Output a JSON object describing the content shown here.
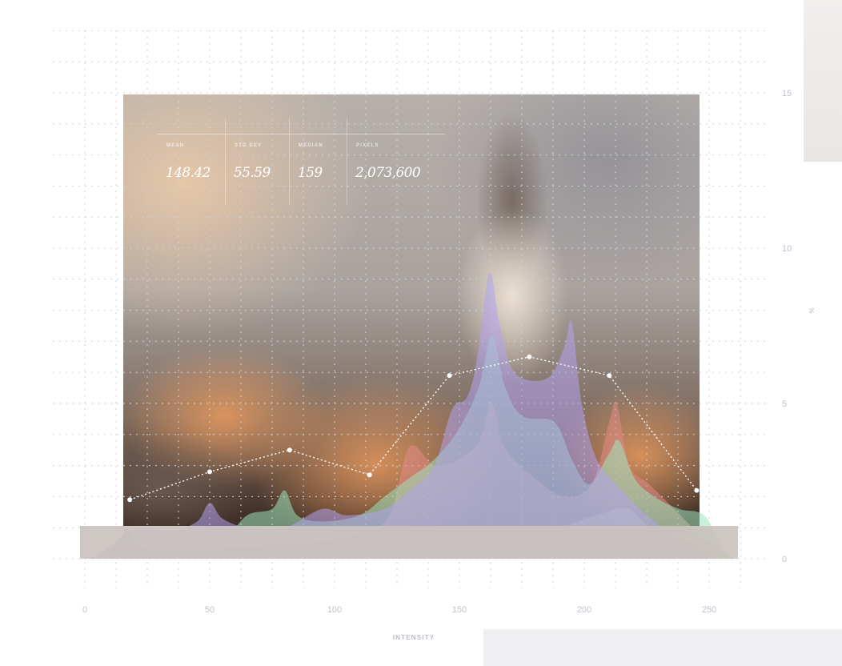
{
  "chart_data": {
    "type": "area",
    "xlabel": "INTENSITY",
    "ylabel": "%",
    "xlim": [
      0,
      260
    ],
    "ylim": [
      0,
      15
    ],
    "x_ticks": [
      "0",
      "50",
      "100",
      "150",
      "200",
      "250"
    ],
    "y_ticks": [
      "0",
      "5",
      "10",
      "15"
    ],
    "grid": true,
    "stats": [
      {
        "label": "MEAN",
        "value": "148.42"
      },
      {
        "label": "STD DEV",
        "value": "55.59"
      },
      {
        "label": "MEDIAN",
        "value": "159"
      },
      {
        "label": "PIXELS",
        "value": "2,073,600"
      }
    ],
    "series": [
      {
        "color": "#b3a2ee",
        "points": [
          [
            2,
            0
          ],
          [
            10,
            0.4
          ],
          [
            18,
            0.9
          ],
          [
            25,
            1.0
          ],
          [
            35,
            0.9
          ],
          [
            45,
            1.2
          ],
          [
            50,
            1.8
          ],
          [
            55,
            1.3
          ],
          [
            65,
            1.0
          ],
          [
            80,
            1.0
          ],
          [
            95,
            1.6
          ],
          [
            105,
            1.4
          ],
          [
            120,
            1.6
          ],
          [
            130,
            2.2
          ],
          [
            140,
            3.0
          ],
          [
            147,
            4.8
          ],
          [
            153,
            5.2
          ],
          [
            157,
            6.4
          ],
          [
            162,
            9.2
          ],
          [
            166,
            7.6
          ],
          [
            172,
            6.0
          ],
          [
            185,
            5.8
          ],
          [
            192,
            6.8
          ],
          [
            195,
            7.6
          ],
          [
            199,
            5.0
          ],
          [
            205,
            3.2
          ],
          [
            215,
            2.2
          ],
          [
            225,
            1.4
          ],
          [
            235,
            0.8
          ],
          [
            245,
            0.4
          ],
          [
            252,
            0.0
          ]
        ]
      },
      {
        "color": "#9de3bb",
        "points": [
          [
            5,
            0
          ],
          [
            20,
            0.2
          ],
          [
            40,
            0.4
          ],
          [
            55,
            0.6
          ],
          [
            65,
            1.4
          ],
          [
            75,
            1.6
          ],
          [
            80,
            2.2
          ],
          [
            85,
            1.4
          ],
          [
            95,
            1.2
          ],
          [
            110,
            1.4
          ],
          [
            120,
            2.0
          ],
          [
            130,
            2.6
          ],
          [
            140,
            3.2
          ],
          [
            150,
            4.2
          ],
          [
            158,
            5.6
          ],
          [
            163,
            7.2
          ],
          [
            168,
            5.6
          ],
          [
            175,
            4.6
          ],
          [
            188,
            4.4
          ],
          [
            195,
            3.2
          ],
          [
            202,
            2.4
          ],
          [
            210,
            3.4
          ],
          [
            214,
            3.8
          ],
          [
            220,
            2.6
          ],
          [
            228,
            2.0
          ],
          [
            238,
            1.6
          ],
          [
            248,
            1.4
          ],
          [
            255,
            0.4
          ],
          [
            260,
            0.0
          ]
        ]
      },
      {
        "color": "#e28a86",
        "points": [
          [
            8,
            0
          ],
          [
            14,
            0.6
          ],
          [
            17,
            1.0
          ],
          [
            21,
            0.4
          ],
          [
            30,
            0.3
          ],
          [
            50,
            0.3
          ],
          [
            70,
            0.4
          ],
          [
            90,
            0.5
          ],
          [
            110,
            0.8
          ],
          [
            122,
            1.4
          ],
          [
            130,
            3.6
          ],
          [
            140,
            3.0
          ],
          [
            150,
            3.2
          ],
          [
            158,
            3.8
          ],
          [
            163,
            5.0
          ],
          [
            168,
            3.6
          ],
          [
            180,
            2.6
          ],
          [
            192,
            2.0
          ],
          [
            203,
            2.4
          ],
          [
            210,
            4.4
          ],
          [
            213,
            5.0
          ],
          [
            218,
            3.0
          ],
          [
            226,
            2.4
          ],
          [
            236,
            1.6
          ],
          [
            246,
            0.8
          ],
          [
            252,
            0.4
          ],
          [
            258,
            0.0
          ]
        ]
      },
      {
        "color": "#e6dfae",
        "points": [
          [
            30,
            0
          ],
          [
            80,
            0.2
          ],
          [
            130,
            0.4
          ],
          [
            180,
            0.8
          ],
          [
            205,
            1.4
          ],
          [
            218,
            1.6
          ],
          [
            230,
            0.6
          ],
          [
            242,
            0.4
          ],
          [
            252,
            0.2
          ],
          [
            258,
            0.0
          ]
        ]
      }
    ],
    "line": {
      "points": [
        [
          18,
          1.9
        ],
        [
          50,
          2.8
        ],
        [
          82,
          3.5
        ],
        [
          114,
          2.7
        ],
        [
          146,
          5.9
        ],
        [
          178,
          6.5
        ],
        [
          210,
          5.9
        ],
        [
          245,
          2.2
        ]
      ]
    }
  }
}
